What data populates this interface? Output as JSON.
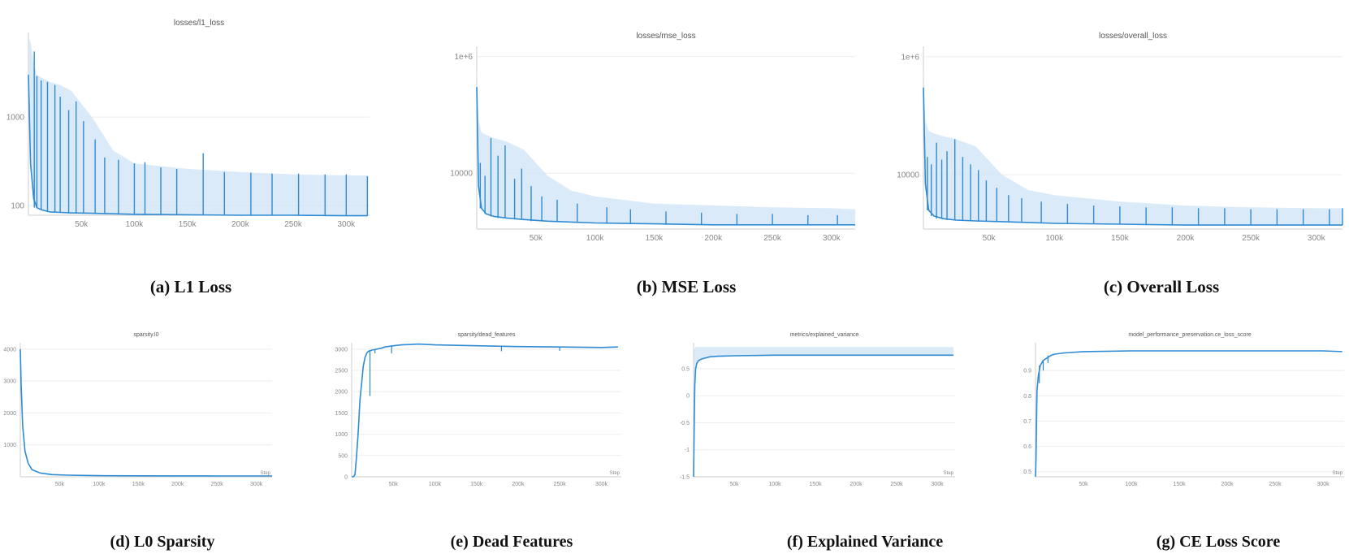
{
  "colors": {
    "line": "#2f8bd3",
    "band": "#cfe3f6",
    "grid": "#eeeeee",
    "axis": "#cccccc",
    "tick_text": "#888888"
  },
  "captions": [
    "(a) L1 Loss",
    "(b) MSE Loss",
    "(c) Overall Loss",
    "(d) L0 Sparsity",
    "(e) Dead Features",
    "(f) Explained Variance",
    "(g) CE Loss Score"
  ],
  "chart_data": [
    {
      "type": "line",
      "title": "losses/l1_loss",
      "xlabel": "",
      "ylabel": "",
      "log_y": true,
      "ylim": [
        78,
        9000
      ],
      "xlim": [
        0,
        322000
      ],
      "xticks": [
        50000,
        100000,
        150000,
        200000,
        250000,
        300000
      ],
      "xtick_labels": [
        "50k",
        "100k",
        "150k",
        "200k",
        "250k",
        "300k"
      ],
      "yticks": [
        100,
        1000
      ],
      "ytick_labels": [
        "100",
        "1000"
      ],
      "x": [
        0,
        2000,
        5000,
        8000,
        12000,
        20000,
        30000,
        40000,
        60000,
        80000,
        100000,
        150000,
        200000,
        250000,
        300000,
        320000
      ],
      "y": [
        3000,
        300,
        120,
        95,
        90,
        85,
        84,
        83,
        82,
        81,
        80,
        79,
        78,
        78,
        77,
        77
      ],
      "band_upper": [
        8000,
        7000,
        4000,
        3000,
        2800,
        2500,
        2300,
        2000,
        1000,
        420,
        300,
        260,
        240,
        225,
        220,
        220
      ],
      "spikes": [
        [
          5500,
          5500
        ],
        [
          8000,
          2900
        ],
        [
          12000,
          2600
        ],
        [
          18000,
          2500
        ],
        [
          25000,
          2300
        ],
        [
          30000,
          1700
        ],
        [
          38000,
          1200
        ],
        [
          45000,
          1500
        ],
        [
          52000,
          900
        ],
        [
          63000,
          560
        ],
        [
          72000,
          350
        ],
        [
          85000,
          330
        ],
        [
          100000,
          300
        ],
        [
          110000,
          310
        ],
        [
          125000,
          270
        ],
        [
          140000,
          260
        ],
        [
          165000,
          390
        ],
        [
          185000,
          240
        ],
        [
          210000,
          235
        ],
        [
          230000,
          230
        ],
        [
          255000,
          230
        ],
        [
          280000,
          225
        ],
        [
          300000,
          225
        ],
        [
          320000,
          215
        ]
      ]
    },
    {
      "type": "line",
      "title": "losses/mse_loss",
      "xlabel": "",
      "ylabel": "",
      "log_y": true,
      "ylim": [
        1100,
        1500000
      ],
      "xlim": [
        0,
        320000
      ],
      "xticks": [
        50000,
        100000,
        150000,
        200000,
        250000,
        300000
      ],
      "xtick_labels": [
        "50k",
        "100k",
        "150k",
        "200k",
        "250k",
        "300k"
      ],
      "yticks": [
        10000,
        1000000
      ],
      "ytick_labels": [
        "10000",
        "1e+6"
      ],
      "x": [
        0,
        1500,
        4000,
        8000,
        15000,
        25000,
        40000,
        60000,
        80000,
        100000,
        150000,
        200000,
        250000,
        300000,
        320000
      ],
      "y": [
        300000,
        6000,
        2500,
        2000,
        1800,
        1700,
        1600,
        1500,
        1450,
        1400,
        1350,
        1300,
        1300,
        1300,
        1300
      ],
      "band_upper": [
        800000,
        80000,
        50000,
        45000,
        40000,
        35000,
        25000,
        9000,
        5000,
        4000,
        3000,
        2800,
        2600,
        2500,
        2400
      ],
      "spikes": [
        [
          3000,
          15000
        ],
        [
          7000,
          9000
        ],
        [
          12000,
          40000
        ],
        [
          18000,
          20000
        ],
        [
          24000,
          30000
        ],
        [
          32000,
          8000
        ],
        [
          38000,
          12000
        ],
        [
          46000,
          6000
        ],
        [
          55000,
          4000
        ],
        [
          68000,
          3500
        ],
        [
          85000,
          3000
        ],
        [
          110000,
          2600
        ],
        [
          130000,
          2400
        ],
        [
          160000,
          2200
        ],
        [
          190000,
          2100
        ],
        [
          220000,
          2000
        ],
        [
          250000,
          2000
        ],
        [
          280000,
          1900
        ],
        [
          305000,
          1900
        ]
      ]
    },
    {
      "type": "line",
      "title": "losses/overall_loss",
      "xlabel": "",
      "ylabel": "",
      "log_y": true,
      "ylim": [
        1200,
        1500000
      ],
      "xlim": [
        0,
        320000
      ],
      "xticks": [
        50000,
        100000,
        150000,
        200000,
        250000,
        300000
      ],
      "xtick_labels": [
        "50k",
        "100k",
        "150k",
        "200k",
        "250k",
        "300k"
      ],
      "yticks": [
        10000,
        1000000
      ],
      "ytick_labels": [
        "10000",
        "1e+6"
      ],
      "x": [
        0,
        1500,
        4000,
        8000,
        15000,
        25000,
        40000,
        60000,
        80000,
        100000,
        150000,
        200000,
        250000,
        300000,
        320000
      ],
      "y": [
        300000,
        7000,
        2500,
        2000,
        1800,
        1700,
        1650,
        1600,
        1550,
        1500,
        1450,
        1400,
        1400,
        1400,
        1400
      ],
      "band_upper": [
        800000,
        80000,
        55000,
        50000,
        45000,
        40000,
        30000,
        10000,
        5500,
        4500,
        3500,
        3000,
        2800,
        2700,
        2700
      ],
      "spikes": [
        [
          3000,
          20000
        ],
        [
          6000,
          15000
        ],
        [
          10000,
          35000
        ],
        [
          14000,
          18000
        ],
        [
          18000,
          25000
        ],
        [
          24000,
          40000
        ],
        [
          30000,
          20000
        ],
        [
          36000,
          15000
        ],
        [
          42000,
          12000
        ],
        [
          48000,
          8000
        ],
        [
          56000,
          6000
        ],
        [
          65000,
          4500
        ],
        [
          75000,
          4000
        ],
        [
          90000,
          3500
        ],
        [
          110000,
          3200
        ],
        [
          130000,
          3000
        ],
        [
          150000,
          2900
        ],
        [
          170000,
          2800
        ],
        [
          190000,
          2800
        ],
        [
          210000,
          2700
        ],
        [
          230000,
          2700
        ],
        [
          250000,
          2600
        ],
        [
          270000,
          2600
        ],
        [
          290000,
          2600
        ],
        [
          310000,
          2600
        ],
        [
          320000,
          2700
        ]
      ]
    },
    {
      "type": "line",
      "title": "sparsity.l0",
      "xlabel": "Step",
      "ylabel": "",
      "log_y": false,
      "ylim": [
        0,
        4200
      ],
      "xlim": [
        0,
        320000
      ],
      "xticks": [
        50000,
        100000,
        150000,
        200000,
        250000,
        300000
      ],
      "xtick_labels": [
        "50k",
        "100k",
        "150k",
        "200k",
        "250k",
        "300k"
      ],
      "yticks": [
        1000,
        2000,
        3000,
        4000
      ],
      "ytick_labels": [
        "1000",
        "2000",
        "3000",
        "4000"
      ],
      "x": [
        0,
        1000,
        3000,
        6000,
        10000,
        15000,
        25000,
        40000,
        60000,
        100000,
        150000,
        200000,
        250000,
        300000,
        320000
      ],
      "y": [
        4000,
        2900,
        1600,
        800,
        420,
        220,
        120,
        70,
        50,
        35,
        30,
        28,
        26,
        25,
        25
      ]
    },
    {
      "type": "line",
      "title": "sparsity/dead_features",
      "xlabel": "Step",
      "ylabel": "",
      "log_y": false,
      "ylim": [
        0,
        3150
      ],
      "xlim": [
        0,
        324000
      ],
      "xticks": [
        50000,
        100000,
        150000,
        200000,
        250000,
        300000
      ],
      "xtick_labels": [
        "50k",
        "100k",
        "150k",
        "200k",
        "250k",
        "300k"
      ],
      "yticks": [
        0,
        500,
        1000,
        1500,
        2000,
        2500,
        3000
      ],
      "ytick_labels": [
        "0",
        "500",
        "1000",
        "1500",
        "2000",
        "2500",
        "3000"
      ],
      "x": [
        0,
        2000,
        4000,
        6000,
        8000,
        10000,
        12000,
        14000,
        16000,
        18000,
        20000,
        25000,
        30000,
        35000,
        40000,
        50000,
        60000,
        80000,
        100000,
        150000,
        200000,
        250000,
        300000,
        320000
      ],
      "y": [
        0,
        0,
        50,
        500,
        1100,
        1800,
        2200,
        2600,
        2800,
        2900,
        2950,
        2980,
        3000,
        3020,
        3050,
        3080,
        3100,
        3120,
        3100,
        3080,
        3060,
        3050,
        3040,
        3050
      ],
      "dips": [
        [
          22000,
          1900
        ],
        [
          28000,
          2900
        ],
        [
          48000,
          2900
        ],
        [
          180000,
          2950
        ],
        [
          250000,
          2960
        ]
      ]
    },
    {
      "type": "line",
      "title": "metrics/explained_variance",
      "xlabel": "Step",
      "ylabel": "",
      "log_y": false,
      "ylim": [
        -1.5,
        0.98
      ],
      "xlim": [
        0,
        322000
      ],
      "xticks": [
        50000,
        100000,
        150000,
        200000,
        250000,
        300000
      ],
      "xtick_labels": [
        "50k",
        "100k",
        "150k",
        "200k",
        "250k",
        "300k"
      ],
      "yticks": [
        -1.5,
        -1,
        -0.5,
        0,
        0.5
      ],
      "ytick_labels": [
        "-1.5",
        "-1",
        "-0.5",
        "0",
        "0.5"
      ],
      "x": [
        0,
        800,
        1500,
        2500,
        4000,
        6000,
        10000,
        15000,
        20000,
        30000,
        50000,
        100000,
        150000,
        200000,
        250000,
        300000,
        320000
      ],
      "y": [
        -1.5,
        -0.5,
        0.2,
        0.5,
        0.6,
        0.65,
        0.68,
        0.7,
        0.72,
        0.73,
        0.74,
        0.75,
        0.75,
        0.75,
        0.75,
        0.75,
        0.75
      ],
      "band_upper": [
        0.7,
        0.85,
        0.88,
        0.9,
        0.9,
        0.9,
        0.9,
        0.9,
        0.9,
        0.9,
        0.9,
        0.9,
        0.9,
        0.9,
        0.9,
        0.9,
        0.9
      ]
    },
    {
      "type": "line",
      "title": "model_performance_preservation.ce_loss_score",
      "xlabel": "Step",
      "ylabel": "",
      "log_y": false,
      "ylim": [
        0.48,
        1.01
      ],
      "xlim": [
        0,
        322000
      ],
      "xticks": [
        50000,
        100000,
        150000,
        200000,
        250000,
        300000
      ],
      "xtick_labels": [
        "50k",
        "100k",
        "150k",
        "200k",
        "250k",
        "300k"
      ],
      "yticks": [
        0.5,
        0.6,
        0.7,
        0.8,
        0.9
      ],
      "ytick_labels": [
        "0.5",
        "0.6",
        "0.7",
        "0.8",
        "0.9"
      ],
      "x": [
        0,
        500,
        1500,
        3000,
        5000,
        8000,
        12000,
        16000,
        20000,
        30000,
        50000,
        100000,
        150000,
        200000,
        250000,
        300000,
        320000
      ],
      "y": [
        0.48,
        0.55,
        0.82,
        0.88,
        0.92,
        0.94,
        0.95,
        0.96,
        0.965,
        0.97,
        0.975,
        0.978,
        0.978,
        0.978,
        0.978,
        0.978,
        0.975
      ],
      "dips": [
        [
          4000,
          0.85
        ],
        [
          8000,
          0.9
        ],
        [
          13000,
          0.93
        ]
      ]
    }
  ]
}
